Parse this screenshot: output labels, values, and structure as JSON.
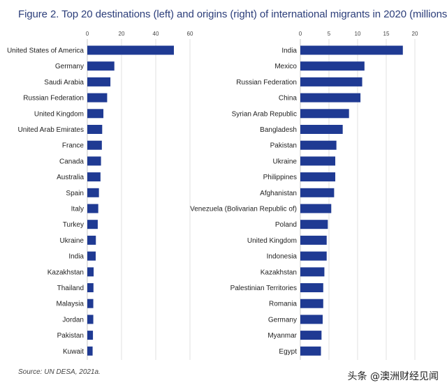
{
  "title": "Figure 2. Top 20 destinations (left) and origins (right) of international migrants in 2020 (millions)",
  "source": "Source: UN DESA, 2021a.",
  "watermark": "头条 @澳洲财经见闻",
  "colors": {
    "bar": "#1f3a93",
    "title": "#2c3e7a",
    "axis": "#c8c8c8",
    "grid": "#e1e1e1"
  },
  "chart_data": [
    {
      "type": "bar",
      "orientation": "horizontal",
      "title": "",
      "xlim": [
        0,
        60
      ],
      "ticks": [
        0,
        20,
        40,
        60
      ],
      "categories": [
        "United States of America",
        "Germany",
        "Saudi Arabia",
        "Russian Federation",
        "United Kingdom",
        "United Arab Emirates",
        "France",
        "Canada",
        "Australia",
        "Spain",
        "Italy",
        "Turkey",
        "Ukraine",
        "India",
        "Kazakhstan",
        "Thailand",
        "Malaysia",
        "Jordan",
        "Pakistan",
        "Kuwait"
      ],
      "values": [
        50.6,
        15.8,
        13.5,
        11.6,
        9.4,
        8.7,
        8.5,
        8.0,
        7.7,
        6.8,
        6.4,
        6.1,
        5.0,
        4.9,
        3.7,
        3.6,
        3.5,
        3.5,
        3.3,
        3.1
      ]
    },
    {
      "type": "bar",
      "orientation": "horizontal",
      "title": "",
      "xlim": [
        0,
        20
      ],
      "ticks": [
        0,
        5,
        10,
        15,
        20
      ],
      "categories": [
        "India",
        "Mexico",
        "Russian Federation",
        "China",
        "Syrian Arab Republic",
        "Bangladesh",
        "Pakistan",
        "Ukraine",
        "Philippines",
        "Afghanistan",
        "Venezuela (Bolivarian Republic of)",
        "Poland",
        "United Kingdom",
        "Indonesia",
        "Kazakhstan",
        "Palestinian Territories",
        "Romania",
        "Germany",
        "Myanmar",
        "Egypt"
      ],
      "values": [
        17.9,
        11.2,
        10.8,
        10.5,
        8.5,
        7.4,
        6.3,
        6.1,
        6.1,
        5.9,
        5.4,
        4.8,
        4.6,
        4.6,
        4.2,
        4.0,
        4.0,
        3.9,
        3.7,
        3.6
      ]
    }
  ]
}
